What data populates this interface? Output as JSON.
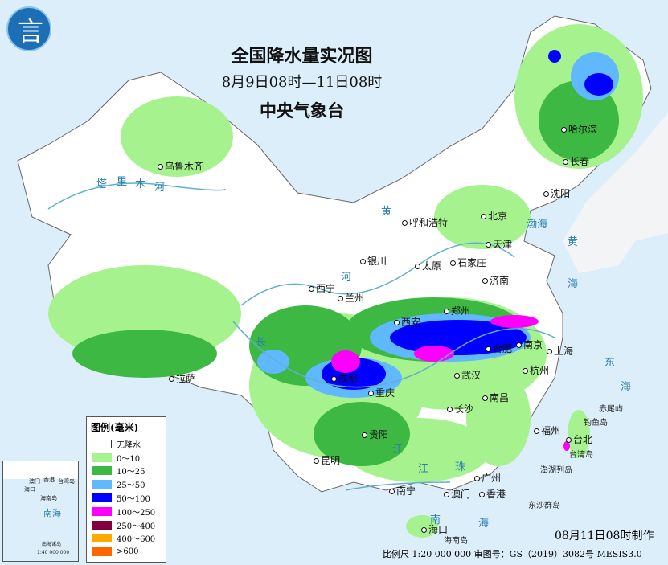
{
  "header": {
    "title": "全国降水量实况图",
    "period": "8月9日08时—11日08时",
    "agency": "中央气象台",
    "logo_glyph": "言"
  },
  "legend": {
    "title": "图例(毫米)",
    "items": [
      {
        "label": "无降水",
        "color": "#ffffff"
      },
      {
        "label": "0～10",
        "color": "#a6f28e"
      },
      {
        "label": "10～25",
        "color": "#3cb843"
      },
      {
        "label": "25～50",
        "color": "#60b8ff"
      },
      {
        "label": "50～100",
        "color": "#0000fe"
      },
      {
        "label": "100～250",
        "color": "#fc00fc"
      },
      {
        "label": "250～400",
        "color": "#800040"
      },
      {
        "label": "400～600",
        "color": "#ffaa00"
      },
      {
        "label": ">600",
        "color": "#ff6600"
      }
    ]
  },
  "cities": [
    "乌鲁木齐",
    "哈尔滨",
    "长春",
    "沈阳",
    "北京",
    "天津",
    "呼和浩特",
    "石家庄",
    "太原",
    "银川",
    "济南",
    "西宁",
    "兰州",
    "郑州",
    "西安",
    "合肥",
    "南京",
    "上海",
    "成都",
    "重庆",
    "武汉",
    "杭州",
    "拉萨",
    "长沙",
    "南昌",
    "贵阳",
    "福州",
    "台北",
    "昆明",
    "广州",
    "南宁",
    "澳门",
    "香港",
    "海口"
  ],
  "seas": [
    "渤海",
    "黄",
    "海",
    "东",
    "海",
    "南",
    "海",
    "塔",
    "里",
    "木",
    "河",
    "黄",
    "河",
    "长",
    "江",
    "珠",
    "江"
  ],
  "islands": [
    "赤尾屿",
    "钓鱼岛",
    "台湾岛",
    "澎湖列岛",
    "东沙群岛",
    "海南岛"
  ],
  "inset": {
    "labels": [
      "澳门",
      "香港",
      "台湾岛",
      "海口",
      "海南岛",
      "南海",
      "南海诸岛",
      "1:40 000 000"
    ]
  },
  "footer": {
    "made": "08月11日08时制作",
    "scale": "比例尺 1:20 000 000 审图号：GS（2019）3082号 MESIS3.0"
  }
}
